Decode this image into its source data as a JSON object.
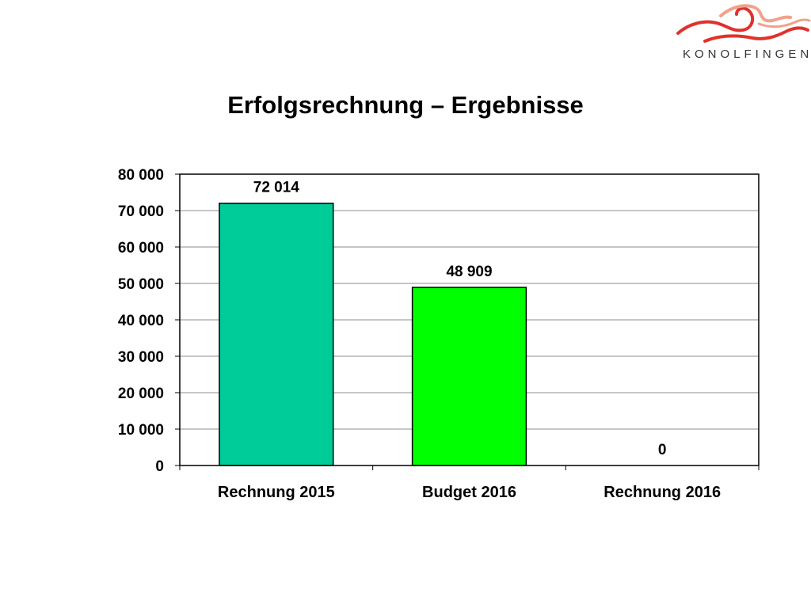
{
  "brand": {
    "name": "KONOLFINGEN",
    "logo_icon": "konolfingen-horse-logo-icon",
    "logo_colors": [
      "#e0322b",
      "#f0a28a"
    ]
  },
  "chart_data": {
    "type": "bar",
    "title": "Erfolgsrechnung – Ergebnisse",
    "xlabel": "",
    "ylabel": "",
    "categories": [
      "Rechnung 2015",
      "Budget 2016",
      "Rechnung 2016"
    ],
    "values": [
      72014,
      48909,
      0
    ],
    "value_labels": [
      "72 014",
      "48 909",
      "0"
    ],
    "bar_colors": [
      "#00cc99",
      "#00ff00",
      "#00ff00"
    ],
    "ylim": [
      0,
      80000
    ],
    "yticks": [
      0,
      10000,
      20000,
      30000,
      40000,
      50000,
      60000,
      70000,
      80000
    ],
    "ytick_labels": [
      "0",
      "10 000",
      "20 000",
      "30 000",
      "40 000",
      "50 000",
      "60 000",
      "70 000",
      "80 000"
    ],
    "grid": true,
    "legend": "none"
  }
}
